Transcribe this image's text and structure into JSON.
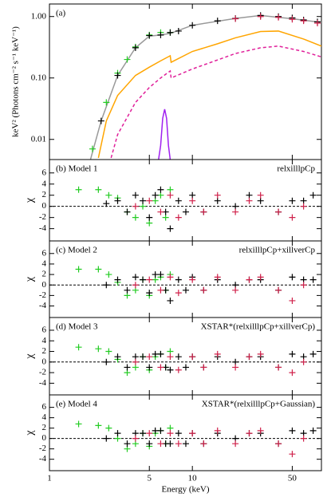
{
  "chart_data": [
    {
      "type": "line",
      "annotation": "(a)",
      "ylabel": "keV² (Photons cm⁻² s⁻¹ keV⁻¹)",
      "xlog": true,
      "ylog": true,
      "xlim": [
        1,
        80
      ],
      "ylim": [
        0.0047,
        1.6
      ],
      "xticks": [
        1,
        5,
        10,
        50
      ],
      "yticks": [
        0.01,
        {
          "value": 0.1,
          "label": "0.10"
        },
        {
          "value": 1,
          "label": "1.00"
        }
      ],
      "series": [
        {
          "color": "#999999",
          "x": [
            1.9,
            2.3,
            3,
            4,
            5,
            6,
            7,
            10,
            20,
            30,
            50,
            80
          ],
          "values": [
            0.004,
            0.02,
            0.11,
            0.31,
            0.48,
            0.5,
            0.53,
            0.72,
            0.93,
            1.04,
            0.92,
            0.8
          ]
        },
        {
          "color": "#ffa500",
          "x": [
            2.2,
            2.5,
            3,
            4,
            5,
            6,
            7,
            7.1,
            10,
            15,
            20,
            30,
            40,
            60,
            80
          ],
          "values": [
            0.005,
            0.02,
            0.052,
            0.11,
            0.15,
            0.19,
            0.23,
            0.18,
            0.27,
            0.36,
            0.45,
            0.57,
            0.58,
            0.43,
            0.33
          ]
        },
        {
          "color": "#e0209a",
          "dash": true,
          "x": [
            2.7,
            3,
            4,
            5,
            6,
            7,
            7.1,
            10,
            20,
            30,
            40,
            60,
            80
          ],
          "values": [
            0.005,
            0.012,
            0.04,
            0.07,
            0.1,
            0.13,
            0.1,
            0.14,
            0.25,
            0.31,
            0.33,
            0.27,
            0.22
          ]
        },
        {
          "color": "#a020f0",
          "x": [
            5.8,
            6.0,
            6.2,
            6.4,
            6.6,
            6.8,
            7.0
          ],
          "values": [
            0.0047,
            0.008,
            0.022,
            0.031,
            0.022,
            0.008,
            0.0047
          ]
        },
        {
          "color": "#22cc22",
          "marker": "cross",
          "x": [
            2,
            2.5,
            3,
            3.5,
            4,
            5,
            6,
            7
          ],
          "values": [
            0.007,
            0.04,
            0.12,
            0.2,
            0.32,
            0.5,
            0.55,
            0.55
          ]
        },
        {
          "color": "#000000",
          "marker": "cross",
          "x": [
            2.3,
            3,
            4,
            5,
            6,
            7,
            8,
            10,
            15,
            20,
            30,
            40,
            50,
            60,
            75
          ],
          "values": [
            0.02,
            0.11,
            0.31,
            0.49,
            0.5,
            0.55,
            0.58,
            0.72,
            0.85,
            0.93,
            1.04,
            1.0,
            0.95,
            0.88,
            0.82
          ]
        },
        {
          "color": "#d0204a",
          "marker": "cross",
          "x": [
            20,
            30,
            40,
            50,
            60,
            75
          ],
          "values": [
            0.92,
            1.0,
            0.97,
            0.9,
            0.85,
            0.78
          ]
        }
      ]
    },
    {
      "type": "scatter",
      "annotation": "(b) Model 1",
      "label": "relxilllpCp",
      "ylabel": "χ",
      "xlog": true,
      "xlim": [
        1,
        80
      ],
      "ylim": [
        -6.2,
        8.4
      ],
      "xticks": [
        1,
        5,
        10,
        50
      ],
      "yticks": [
        -4,
        -2,
        0,
        2,
        4,
        6
      ],
      "series": [
        {
          "color": "#22cc22",
          "x": [
            1.6,
            2.2,
            2.6,
            3,
            3.5,
            4,
            4.5,
            5,
            5.5,
            6,
            6.5,
            7
          ],
          "values": [
            3,
            3,
            2,
            1.5,
            -1,
            -2,
            0,
            -3,
            1,
            2,
            -2,
            3
          ]
        },
        {
          "color": "#000000",
          "x": [
            2.5,
            3,
            3.5,
            4,
            4.5,
            5,
            5.5,
            6,
            6.5,
            7,
            8,
            9,
            10,
            12,
            15,
            20,
            25,
            30,
            40,
            50,
            60,
            70
          ],
          "values": [
            0.5,
            1,
            -1,
            2,
            1,
            -2,
            2,
            3,
            -1,
            -4,
            1,
            -1,
            2,
            -1,
            1,
            0,
            2,
            1,
            -1,
            1,
            1,
            2
          ]
        },
        {
          "color": "#d0204a",
          "x": [
            4,
            5,
            6,
            7,
            8,
            10,
            12,
            15,
            20,
            25,
            30,
            40,
            50,
            60
          ],
          "values": [
            0,
            1,
            -1,
            2,
            -2,
            1,
            -1,
            2,
            -1,
            1,
            2,
            -1,
            -2,
            0
          ]
        }
      ]
    },
    {
      "type": "scatter",
      "annotation": "(c) Model 2",
      "label": "relxilllpCp+xillverCp",
      "ylabel": "χ",
      "xlog": true,
      "xlim": [
        1,
        80
      ],
      "ylim": [
        -6.2,
        8.4
      ],
      "xticks": [
        1,
        5,
        10,
        50
      ],
      "yticks": [
        -4,
        -2,
        0,
        2,
        4,
        6
      ],
      "series": [
        {
          "color": "#22cc22",
          "x": [
            1.6,
            2.2,
            2.6,
            3,
            3.5,
            4,
            4.5,
            5,
            5.5,
            6,
            6.5,
            7
          ],
          "values": [
            3,
            3,
            2,
            0.5,
            -2,
            -1,
            1,
            -2,
            1,
            1.5,
            -1,
            2
          ]
        },
        {
          "color": "#000000",
          "x": [
            2.5,
            3,
            3.5,
            4,
            4.5,
            5,
            5.5,
            6,
            6.5,
            7,
            8,
            9,
            10,
            12,
            15,
            20,
            25,
            30,
            40,
            50,
            60,
            70
          ],
          "values": [
            0,
            1,
            -1,
            1.5,
            1,
            -1.5,
            2,
            2,
            -1,
            -3,
            1,
            -1,
            1.5,
            -1,
            1,
            0,
            1,
            1,
            -1,
            1.5,
            1,
            1
          ]
        },
        {
          "color": "#d0204a",
          "x": [
            4,
            5,
            6,
            7,
            8,
            10,
            12,
            15,
            20,
            25,
            30,
            40,
            50,
            60
          ],
          "values": [
            0,
            1,
            -1,
            1.5,
            -1.5,
            1,
            -1,
            1.5,
            -1,
            1,
            1.5,
            -1,
            -3,
            0
          ]
        }
      ]
    },
    {
      "type": "scatter",
      "annotation": "(d) Model 3",
      "label": "XSTAR*(relxilllpCp+xillverCp)",
      "ylabel": "χ",
      "xlog": true,
      "xlim": [
        1,
        80
      ],
      "ylim": [
        -6.2,
        8.4
      ],
      "xticks": [
        1,
        5,
        10,
        50
      ],
      "yticks": [
        -4,
        -2,
        0,
        2,
        4,
        6
      ],
      "series": [
        {
          "color": "#22cc22",
          "x": [
            1.6,
            2.2,
            2.6,
            3,
            3.5,
            4,
            4.5,
            5,
            5.5,
            6,
            6.5,
            7
          ],
          "values": [
            2.8,
            2.5,
            2,
            0.5,
            -2,
            -1,
            1,
            -1.5,
            1,
            1.5,
            -1,
            2
          ]
        },
        {
          "color": "#000000",
          "x": [
            2.5,
            3,
            3.5,
            4,
            4.5,
            5,
            5.5,
            6,
            6.5,
            7,
            8,
            9,
            10,
            12,
            15,
            20,
            25,
            30,
            40,
            50,
            60,
            70
          ],
          "values": [
            0,
            1,
            -1,
            1,
            1,
            -1,
            1.5,
            1.5,
            -1,
            -1.5,
            1,
            -1,
            1,
            -1,
            1,
            0,
            1,
            1,
            -1,
            1.5,
            1,
            1.5
          ]
        },
        {
          "color": "#d0204a",
          "x": [
            4,
            5,
            6,
            7,
            8,
            10,
            12,
            15,
            20,
            25,
            30,
            40,
            50,
            60
          ],
          "values": [
            0,
            1,
            -1,
            1,
            -1.5,
            1,
            -1,
            1.5,
            -1,
            1,
            1.5,
            -1,
            -2,
            0
          ]
        }
      ]
    },
    {
      "type": "scatter",
      "annotation": "(e) Model 4",
      "label": "XSTAR*(relxilllpCp+Gaussian)",
      "ylabel": "χ",
      "xlabel": "Energy (keV)",
      "xlog": true,
      "xlim": [
        1,
        80
      ],
      "ylim": [
        -6.2,
        8.4
      ],
      "xticks": [
        1,
        5,
        10,
        50
      ],
      "yticks": [
        -4,
        -2,
        0,
        2,
        4,
        6
      ],
      "series": [
        {
          "color": "#22cc22",
          "x": [
            1.6,
            2.2,
            2.6,
            3,
            3.5,
            4,
            4.5,
            5,
            5.5,
            6,
            6.5,
            7
          ],
          "values": [
            2.8,
            2.5,
            2,
            0,
            -2,
            -1,
            1,
            -1.5,
            1,
            1.5,
            -1,
            2
          ]
        },
        {
          "color": "#000000",
          "x": [
            2.5,
            3,
            3.5,
            4,
            4.5,
            5,
            5.5,
            6,
            6.5,
            7,
            8,
            9,
            10,
            12,
            15,
            20,
            25,
            30,
            40,
            50,
            60,
            70
          ],
          "values": [
            0,
            1,
            -1,
            1,
            1,
            -1,
            1.5,
            1.5,
            -1,
            -1,
            1,
            -1,
            1,
            -1,
            1,
            0,
            1,
            1,
            -1,
            1.5,
            1,
            1.5
          ]
        },
        {
          "color": "#d0204a",
          "x": [
            4,
            5,
            6,
            7,
            8,
            10,
            12,
            15,
            20,
            25,
            30,
            40,
            50,
            60
          ],
          "values": [
            0,
            1,
            -1,
            1,
            -1,
            1,
            -1,
            1.5,
            -1,
            1,
            1.5,
            -1,
            -3,
            0
          ]
        }
      ]
    }
  ]
}
